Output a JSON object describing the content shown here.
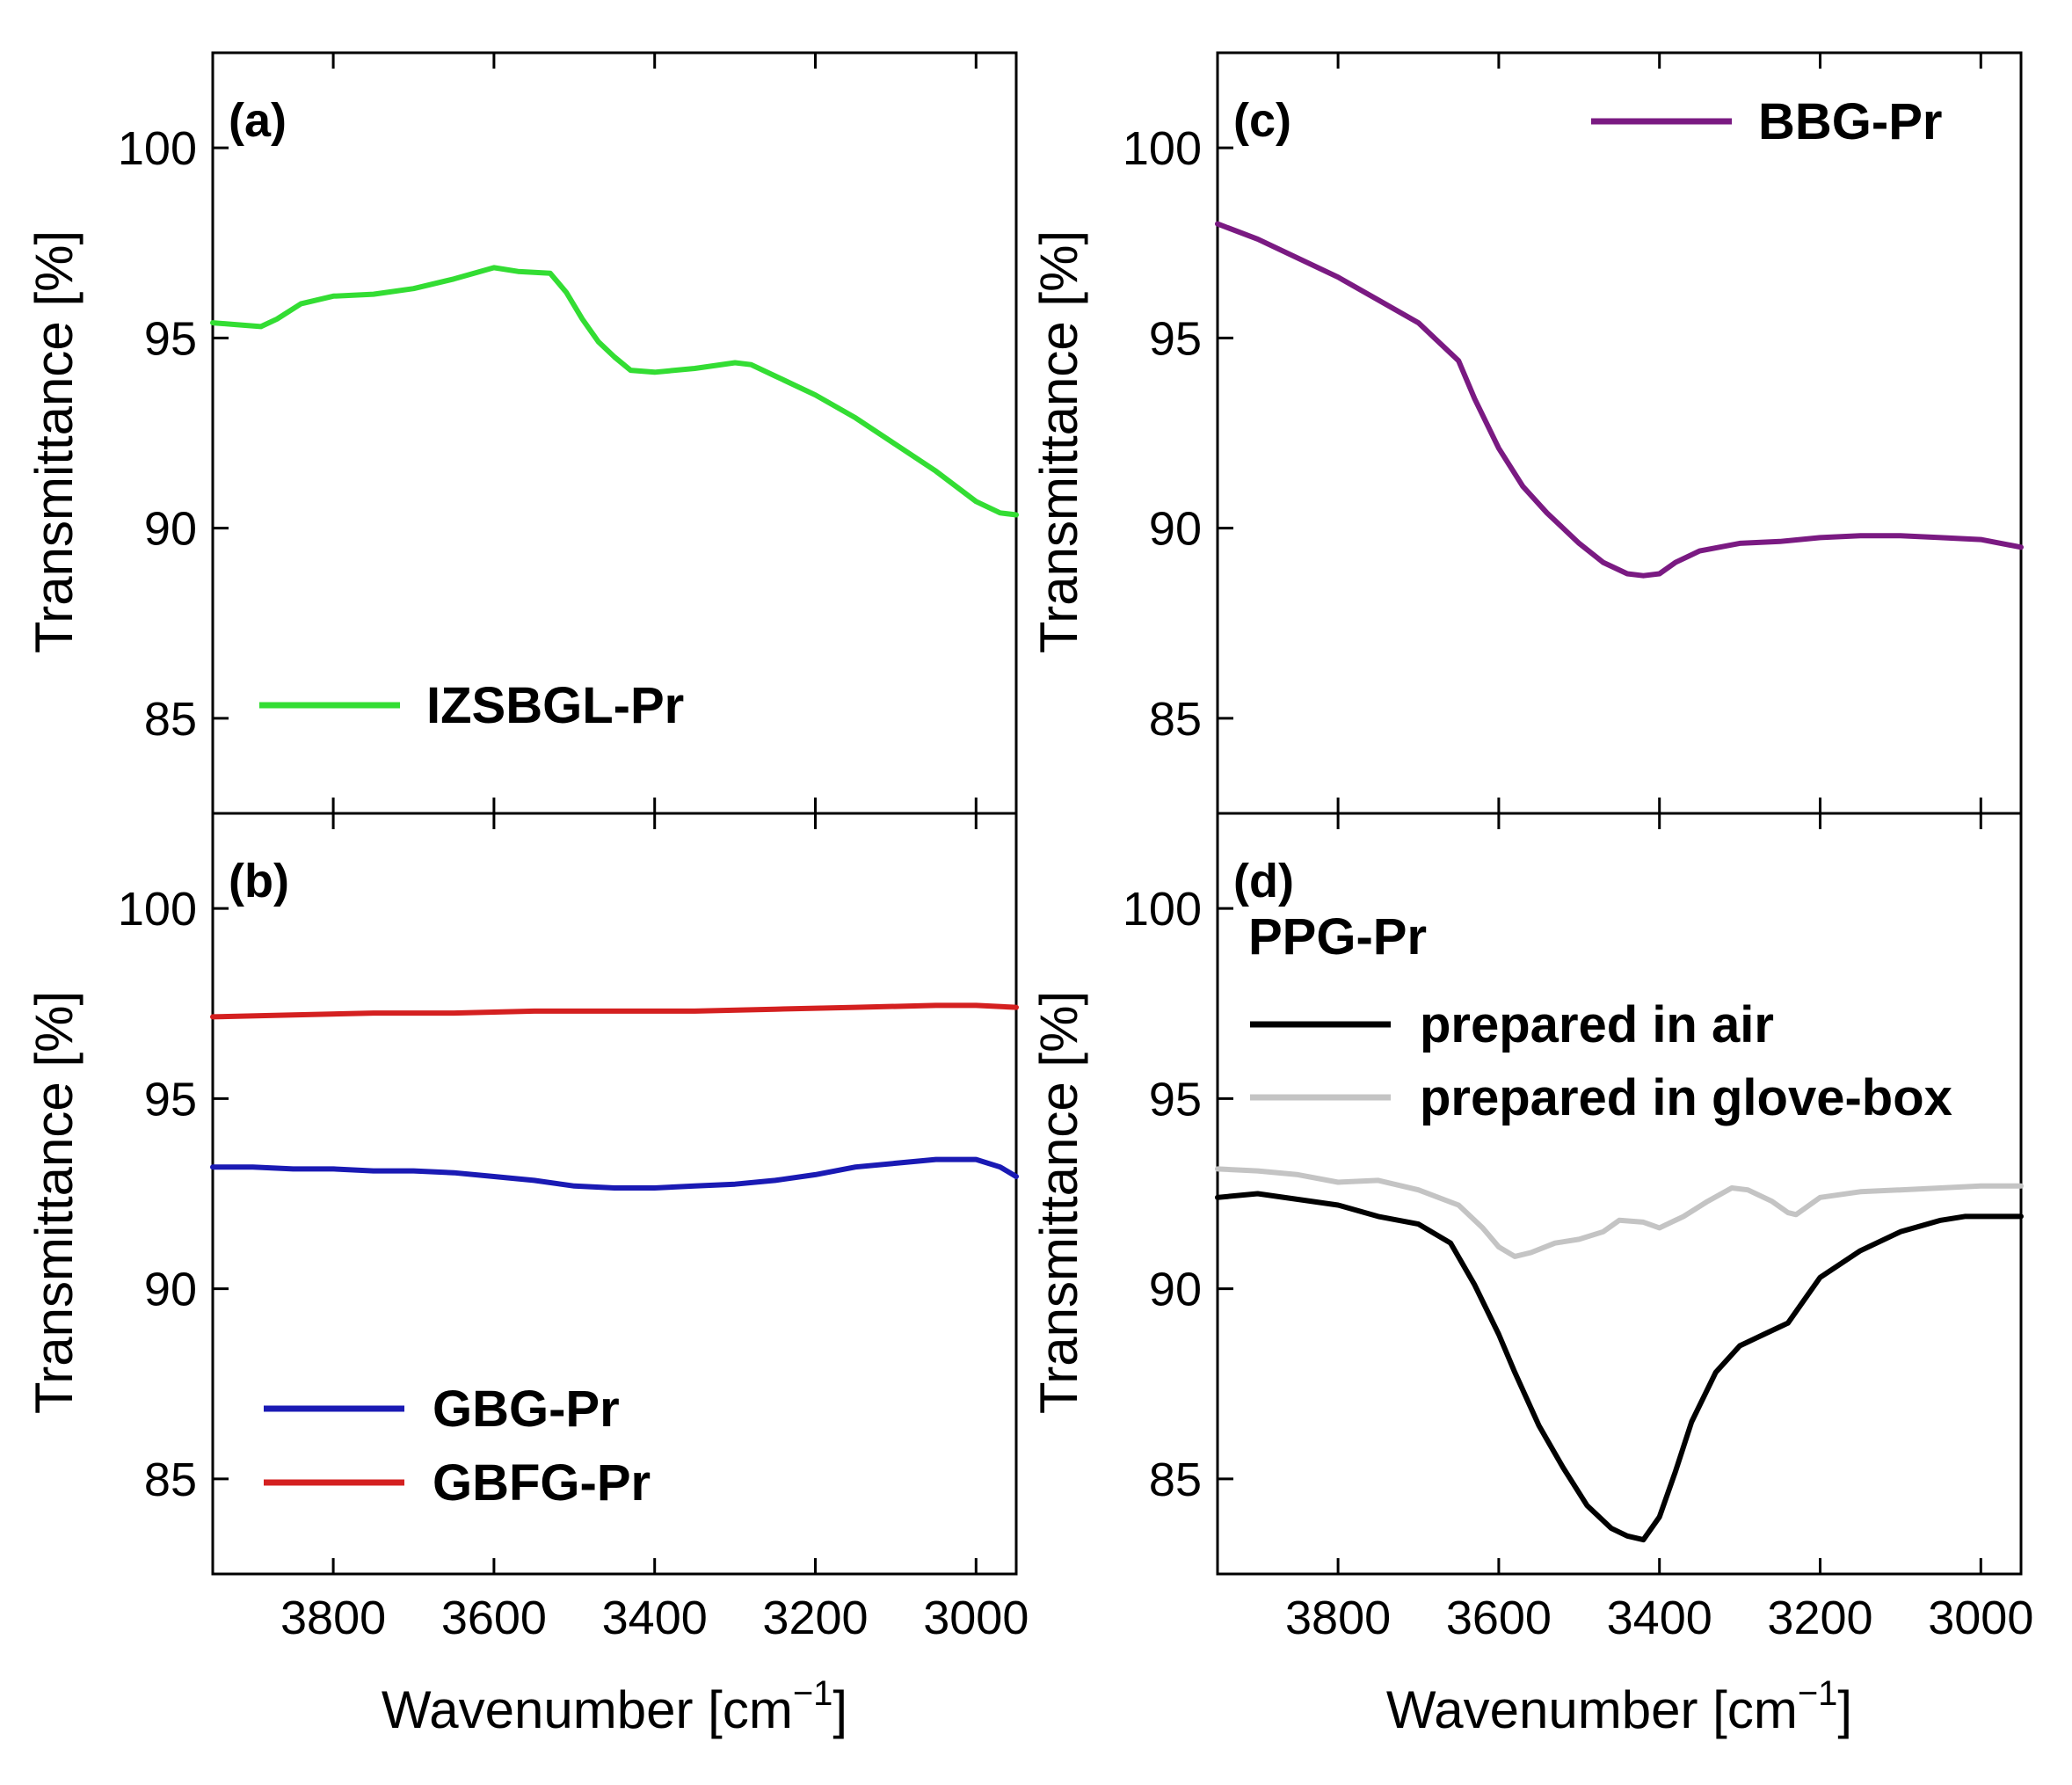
{
  "chart_data": [
    {
      "panel": "(a)",
      "type": "line",
      "xlabel": "",
      "ylabel": "Transmittance [%]",
      "xlim": [
        3950,
        2950
      ],
      "ylim": [
        82.5,
        102.5
      ],
      "yticks": [
        85,
        90,
        95,
        100
      ],
      "xticks": [
        3800,
        3600,
        3400,
        3200,
        3000
      ],
      "legend_position": "bottom-left",
      "series": [
        {
          "name": "IZSBGL-Pr",
          "color": "#33dd33",
          "x": [
            3950,
            3920,
            3890,
            3870,
            3840,
            3800,
            3750,
            3700,
            3650,
            3600,
            3570,
            3530,
            3510,
            3490,
            3470,
            3450,
            3430,
            3400,
            3350,
            3300,
            3280,
            3250,
            3200,
            3150,
            3100,
            3050,
            3000,
            2970,
            2950
          ],
          "y": [
            95.4,
            95.35,
            95.3,
            95.5,
            95.9,
            96.1,
            96.15,
            96.3,
            96.55,
            96.85,
            96.75,
            96.7,
            96.2,
            95.5,
            94.9,
            94.5,
            94.15,
            94.1,
            94.2,
            94.35,
            94.3,
            94.0,
            93.5,
            92.9,
            92.2,
            91.5,
            90.7,
            90.4,
            90.35
          ]
        }
      ]
    },
    {
      "panel": "(b)",
      "type": "line",
      "xlabel": "Wavenumber [cm⁻¹]",
      "ylabel": "Transmittance [%]",
      "xlim": [
        3950,
        2950
      ],
      "ylim": [
        82.5,
        102.5
      ],
      "yticks": [
        85,
        90,
        95,
        100
      ],
      "xticks": [
        3800,
        3600,
        3400,
        3200,
        3000
      ],
      "legend_position": "bottom-left",
      "series": [
        {
          "name": "GBG-Pr",
          "color": "#1a1ab4",
          "x": [
            3950,
            3900,
            3850,
            3800,
            3750,
            3700,
            3650,
            3600,
            3550,
            3500,
            3450,
            3400,
            3350,
            3300,
            3250,
            3200,
            3150,
            3100,
            3050,
            3000,
            2970,
            2950
          ],
          "y": [
            93.2,
            93.2,
            93.15,
            93.15,
            93.1,
            93.1,
            93.05,
            92.95,
            92.85,
            92.7,
            92.65,
            92.65,
            92.7,
            92.75,
            92.85,
            93.0,
            93.2,
            93.3,
            93.4,
            93.4,
            93.2,
            92.95
          ]
        },
        {
          "name": "GBFG-Pr",
          "color": "#d42020",
          "x": [
            3950,
            3850,
            3750,
            3650,
            3550,
            3450,
            3350,
            3250,
            3150,
            3050,
            3000,
            2950
          ],
          "y": [
            97.15,
            97.2,
            97.25,
            97.25,
            97.3,
            97.3,
            97.3,
            97.35,
            97.4,
            97.45,
            97.45,
            97.4
          ]
        }
      ]
    },
    {
      "panel": "(c)",
      "type": "line",
      "xlabel": "",
      "ylabel": "Transmittance [%]",
      "xlim": [
        3950,
        2950
      ],
      "ylim": [
        82.5,
        102.5
      ],
      "yticks": [
        85,
        90,
        95,
        100
      ],
      "xticks": [
        3800,
        3600,
        3400,
        3200,
        3000
      ],
      "legend_position": "top-right",
      "series": [
        {
          "name": "BBG-Pr",
          "color": "#7a1a82",
          "x": [
            3950,
            3900,
            3850,
            3800,
            3750,
            3700,
            3680,
            3650,
            3630,
            3600,
            3570,
            3540,
            3500,
            3470,
            3440,
            3420,
            3400,
            3380,
            3350,
            3300,
            3250,
            3200,
            3150,
            3100,
            3050,
            3000,
            2950
          ],
          "y": [
            98.0,
            97.6,
            97.1,
            96.6,
            96.0,
            95.4,
            95.0,
            94.4,
            93.4,
            92.1,
            91.1,
            90.4,
            89.6,
            89.1,
            88.8,
            88.75,
            88.8,
            89.1,
            89.4,
            89.6,
            89.65,
            89.75,
            89.8,
            89.8,
            89.75,
            89.7,
            89.5
          ]
        }
      ]
    },
    {
      "panel": "(d)",
      "type": "line",
      "title": "PPG-Pr",
      "xlabel": "Wavenumber [cm⁻¹]",
      "ylabel": "Transmittance [%]",
      "xlim": [
        3950,
        2950
      ],
      "ylim": [
        82.5,
        102.5
      ],
      "yticks": [
        85,
        90,
        95,
        100
      ],
      "xticks": [
        3800,
        3600,
        3400,
        3200,
        3000
      ],
      "legend_position": "top-left",
      "series": [
        {
          "name": "prepared in air",
          "color": "#000000",
          "x": [
            3950,
            3900,
            3850,
            3800,
            3750,
            3700,
            3660,
            3630,
            3600,
            3580,
            3550,
            3520,
            3490,
            3460,
            3440,
            3420,
            3400,
            3380,
            3360,
            3330,
            3300,
            3270,
            3240,
            3220,
            3200,
            3150,
            3100,
            3050,
            3020,
            3000,
            2950
          ],
          "y": [
            92.4,
            92.5,
            92.35,
            92.2,
            91.9,
            91.7,
            91.2,
            90.1,
            88.8,
            87.8,
            86.4,
            85.3,
            84.3,
            83.7,
            83.5,
            83.4,
            84.0,
            85.2,
            86.5,
            87.8,
            88.5,
            88.8,
            89.1,
            89.7,
            90.3,
            91.0,
            91.5,
            91.8,
            91.9,
            91.9,
            91.9
          ]
        },
        {
          "name": "prepared in glove-box",
          "color": "#c4c4c4",
          "x": [
            3950,
            3900,
            3850,
            3800,
            3750,
            3700,
            3650,
            3620,
            3600,
            3580,
            3560,
            3530,
            3500,
            3470,
            3450,
            3420,
            3400,
            3370,
            3340,
            3310,
            3290,
            3260,
            3240,
            3230,
            3200,
            3150,
            3100,
            3050,
            3000,
            2950
          ],
          "y": [
            93.15,
            93.1,
            93.0,
            92.8,
            92.85,
            92.6,
            92.2,
            91.6,
            91.1,
            90.85,
            90.95,
            91.2,
            91.3,
            91.5,
            91.8,
            91.75,
            91.6,
            91.9,
            92.3,
            92.65,
            92.6,
            92.3,
            92.0,
            91.95,
            92.4,
            92.55,
            92.6,
            92.65,
            92.7,
            92.7
          ]
        }
      ]
    }
  ]
}
